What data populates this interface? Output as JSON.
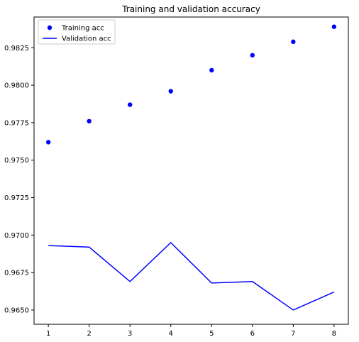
{
  "chart_data": {
    "type": "line",
    "title": "Training and validation accuracy",
    "xlabel": "",
    "ylabel": "",
    "x": [
      1,
      2,
      3,
      4,
      5,
      6,
      7,
      8
    ],
    "xlim": [
      0.65,
      8.35
    ],
    "ylim": [
      0.96405,
      0.98455
    ],
    "xticks": [
      1,
      2,
      3,
      4,
      5,
      6,
      7,
      8
    ],
    "yticks": [
      0.965,
      0.9675,
      0.97,
      0.9725,
      0.975,
      0.9775,
      0.98,
      0.9825
    ],
    "ytick_labels": [
      "0.9650",
      "0.9675",
      "0.9700",
      "0.9725",
      "0.9750",
      "0.9775",
      "0.9800",
      "0.9825"
    ],
    "grid": false,
    "legend": {
      "placement": "top-left"
    },
    "series": [
      {
        "name": "Training acc",
        "style": "markers",
        "color": "#0000ff",
        "values": [
          0.9762,
          0.9776,
          0.9787,
          0.9796,
          0.981,
          0.982,
          0.9829,
          0.9839
        ]
      },
      {
        "name": "Validation acc",
        "style": "line",
        "color": "#0000ff",
        "values": [
          0.9693,
          0.9692,
          0.9669,
          0.9695,
          0.9668,
          0.9669,
          0.965,
          0.9662
        ]
      }
    ]
  }
}
